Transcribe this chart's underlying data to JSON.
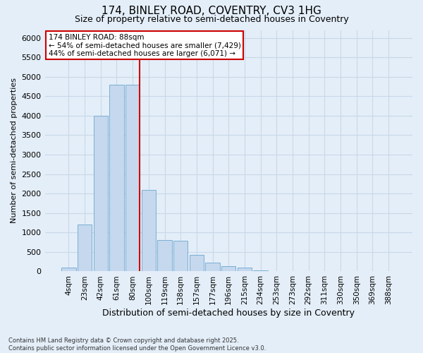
{
  "title1": "174, BINLEY ROAD, COVENTRY, CV3 1HG",
  "title2": "Size of property relative to semi-detached houses in Coventry",
  "xlabel": "Distribution of semi-detached houses by size in Coventry",
  "ylabel": "Number of semi-detached properties",
  "categories": [
    "4sqm",
    "23sqm",
    "42sqm",
    "61sqm",
    "80sqm",
    "100sqm",
    "119sqm",
    "138sqm",
    "157sqm",
    "177sqm",
    "196sqm",
    "215sqm",
    "234sqm",
    "253sqm",
    "273sqm",
    "292sqm",
    "311sqm",
    "330sqm",
    "350sqm",
    "369sqm",
    "388sqm"
  ],
  "values": [
    90,
    1200,
    4000,
    4800,
    4800,
    2100,
    800,
    780,
    420,
    230,
    140,
    90,
    30,
    10,
    5,
    2,
    1,
    1,
    0,
    0,
    0
  ],
  "bar_color": "#c5d8ee",
  "bar_edge_color": "#7aafd4",
  "vline_color": "#cc0000",
  "annotation_text": "174 BINLEY ROAD: 88sqm\n← 54% of semi-detached houses are smaller (7,429)\n44% of semi-detached houses are larger (6,071) →",
  "annotation_box_color": "white",
  "annotation_box_edge": "#cc0000",
  "ylim": [
    0,
    6200
  ],
  "yticks": [
    0,
    500,
    1000,
    1500,
    2000,
    2500,
    3000,
    3500,
    4000,
    4500,
    5000,
    5500,
    6000
  ],
  "grid_color": "#c8d8e8",
  "bg_color": "#e4eef8",
  "footnote": "Contains HM Land Registry data © Crown copyright and database right 2025.\nContains public sector information licensed under the Open Government Licence v3.0."
}
